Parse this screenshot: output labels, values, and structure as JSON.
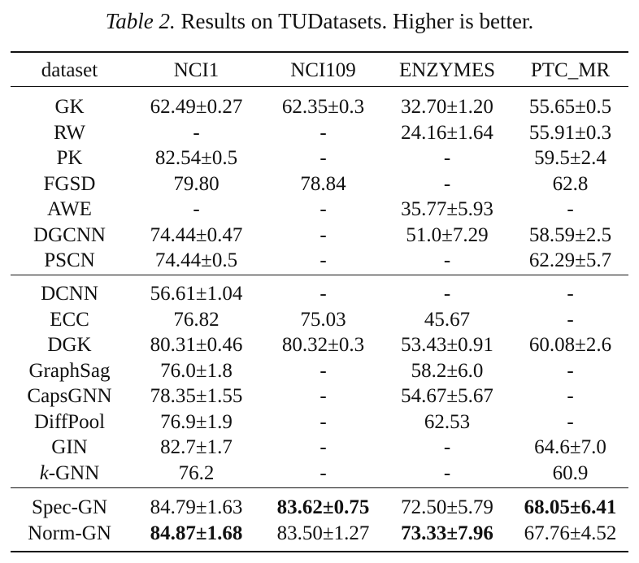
{
  "caption": {
    "label": "Table 2.",
    "text": " Results on TUDatasets. Higher is better."
  },
  "table": {
    "headers": [
      "dataset",
      "NCI1",
      "NCI109",
      "ENZYMES",
      "PTC_MR"
    ],
    "groups": [
      {
        "rows": [
          {
            "cells": [
              "GK",
              "62.49±0.27",
              "62.35±0.3",
              "32.70±1.20",
              "55.65±0.5"
            ]
          },
          {
            "cells": [
              "RW",
              "-",
              "-",
              "24.16±1.64",
              "55.91±0.3"
            ]
          },
          {
            "cells": [
              "PK",
              "82.54±0.5",
              "-",
              "-",
              "59.5±2.4"
            ]
          },
          {
            "cells": [
              "FGSD",
              "79.80",
              "78.84",
              "-",
              "62.8"
            ]
          },
          {
            "cells": [
              "AWE",
              "-",
              "-",
              "35.77±5.93",
              "-"
            ]
          },
          {
            "cells": [
              "DGCNN",
              "74.44±0.47",
              "-",
              "51.0±7.29",
              "58.59±2.5"
            ]
          },
          {
            "cells": [
              "PSCN",
              "74.44±0.5",
              "-",
              "-",
              "62.29±5.7"
            ]
          }
        ]
      },
      {
        "rows": [
          {
            "cells": [
              "DCNN",
              "56.61±1.04",
              "-",
              "-",
              "-"
            ]
          },
          {
            "cells": [
              "ECC",
              "76.82",
              "75.03",
              "45.67",
              "-"
            ]
          },
          {
            "cells": [
              "DGK",
              "80.31±0.46",
              "80.32±0.3",
              "53.43±0.91",
              "60.08±2.6"
            ]
          },
          {
            "cells": [
              "GraphSag",
              "76.0±1.8",
              "-",
              "58.2±6.0",
              "-"
            ]
          },
          {
            "cells": [
              "CapsGNN",
              "78.35±1.55",
              "-",
              "54.67±5.67",
              "-"
            ]
          },
          {
            "cells": [
              "DiffPool",
              "76.9±1.9",
              "-",
              "62.53",
              "-"
            ]
          },
          {
            "cells": [
              "GIN",
              "82.7±1.7",
              "-",
              "-",
              "64.6±7.0"
            ]
          },
          {
            "cells": [
              "k-GNN",
              "76.2",
              "-",
              "-",
              "60.9"
            ]
          }
        ]
      },
      {
        "rows": [
          {
            "cells": [
              "Spec-GN",
              "84.79±1.63",
              "83.62±0.75",
              "72.50±5.79",
              "68.05±6.41"
            ],
            "bold": [
              2,
              4
            ]
          },
          {
            "cells": [
              "Norm-GN",
              "84.87±1.68",
              "83.50±1.27",
              "73.33±7.96",
              "67.76±4.52"
            ],
            "bold": [
              1,
              3
            ]
          }
        ]
      }
    ]
  }
}
